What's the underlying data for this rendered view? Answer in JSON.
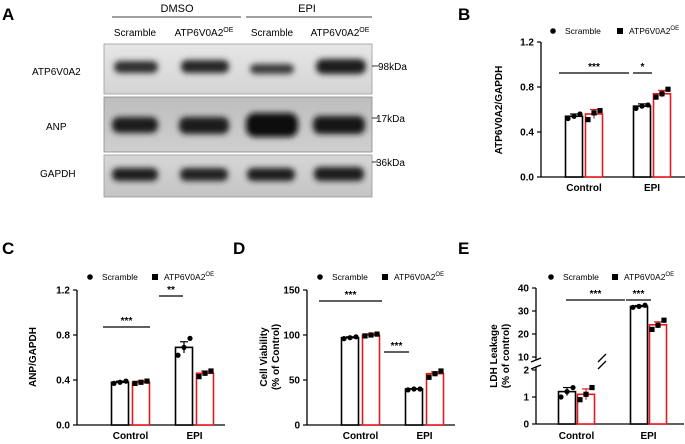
{
  "panel_letters": [
    "A",
    "B",
    "C",
    "D",
    "E"
  ],
  "blot": {
    "groups": [
      "DMSO",
      "EPI"
    ],
    "lanes": [
      "Scramble",
      "ATP6V0A2",
      "Scramble",
      "ATP6V0A2"
    ],
    "lane_sup": "OE",
    "rows": [
      {
        "label": "ATP6V0A2",
        "marker": "98kDa"
      },
      {
        "label": "ANP",
        "marker": "17kDa"
      },
      {
        "label": "GAPDH",
        "marker": "36kDa"
      }
    ]
  },
  "legend": {
    "scramble": "Scramble",
    "oe": "ATP6V0A2",
    "oe_sup": "OE"
  },
  "colors": {
    "scramble": "#000000",
    "oe": "#e8191e"
  },
  "chart_data": [
    {
      "panel": "B",
      "type": "bar",
      "categories": [
        "Control",
        "EPI"
      ],
      "ylabel": "ATP6V0A2/GAPDH",
      "ylim": [
        0,
        1.2
      ],
      "yticks": [
        "0.0",
        "0.4",
        "0.8",
        "1.2"
      ],
      "series": [
        {
          "name": "Scramble",
          "values": [
            0.54,
            0.63
          ],
          "err": [
            0.02,
            0.02
          ],
          "points": [
            [
              0.52,
              0.54,
              0.56
            ],
            [
              0.61,
              0.63,
              0.64
            ]
          ]
        },
        {
          "name": "ATP6V0A2",
          "values": [
            0.56,
            0.74
          ],
          "err": [
            0.04,
            0.03
          ],
          "points": [
            [
              0.51,
              0.57,
              0.59
            ],
            [
              0.71,
              0.74,
              0.78
            ]
          ]
        }
      ],
      "annotations": [
        "***",
        "*"
      ]
    },
    {
      "panel": "C",
      "type": "bar",
      "categories": [
        "Control",
        "EPI"
      ],
      "ylabel": "ANP/GAPDH",
      "ylim": [
        0,
        1.2
      ],
      "yticks": [
        "0.0",
        "0.4",
        "0.8",
        "1.2"
      ],
      "series": [
        {
          "name": "Scramble",
          "values": [
            0.38,
            0.69
          ],
          "err": [
            0.01,
            0.05
          ],
          "points": [
            [
              0.37,
              0.38,
              0.39
            ],
            [
              0.62,
              0.69,
              0.77
            ]
          ]
        },
        {
          "name": "ATP6V0A2",
          "values": [
            0.38,
            0.46
          ],
          "err": [
            0.01,
            0.02
          ],
          "points": [
            [
              0.37,
              0.38,
              0.39
            ],
            [
              0.43,
              0.46,
              0.48
            ]
          ]
        }
      ],
      "annotations": [
        "***",
        "**"
      ]
    },
    {
      "panel": "D",
      "type": "bar",
      "categories": [
        "Control",
        "EPI"
      ],
      "ylabel": "Cell Viability",
      "ylabel2": "(% of Control)",
      "ylim": [
        0,
        150
      ],
      "yticks": [
        "0",
        "50",
        "100",
        "150"
      ],
      "series": [
        {
          "name": "Scramble",
          "values": [
            97,
            40
          ],
          "err": [
            1,
            0.5
          ],
          "points": [
            [
              96,
              97,
              98
            ],
            [
              39,
              40,
              40
            ]
          ]
        },
        {
          "name": "ATP6V0A2",
          "values": [
            100,
            57
          ],
          "err": [
            1,
            2
          ],
          "points": [
            [
              99,
              100,
              101
            ],
            [
              53,
              57,
              60
            ]
          ]
        }
      ],
      "annotations": [
        "***",
        "***"
      ]
    },
    {
      "panel": "E",
      "type": "bar",
      "categories": [
        "Control",
        "EPI"
      ],
      "ylabel": "LDH Leakage",
      "ylabel2": "(% of control)",
      "ylim": [
        0,
        40
      ],
      "axis_break": [
        2,
        10
      ],
      "yticks": [
        "0",
        "1",
        "2",
        "10",
        "20",
        "30",
        "40"
      ],
      "series": [
        {
          "name": "Scramble",
          "values": [
            1.2,
            32
          ],
          "err": [
            0.15,
            0.4
          ],
          "points": [
            [
              1.0,
              1.2,
              1.35
            ],
            [
              31.6,
              32.0,
              32.5
            ]
          ]
        },
        {
          "name": "ATP6V0A2",
          "values": [
            1.1,
            24
          ],
          "err": [
            0.2,
            1.3
          ],
          "points": [
            [
              0.9,
              1.1,
              1.35
            ],
            [
              22,
              23.8,
              26
            ]
          ]
        }
      ],
      "annotations": [
        "***",
        "***"
      ]
    }
  ]
}
